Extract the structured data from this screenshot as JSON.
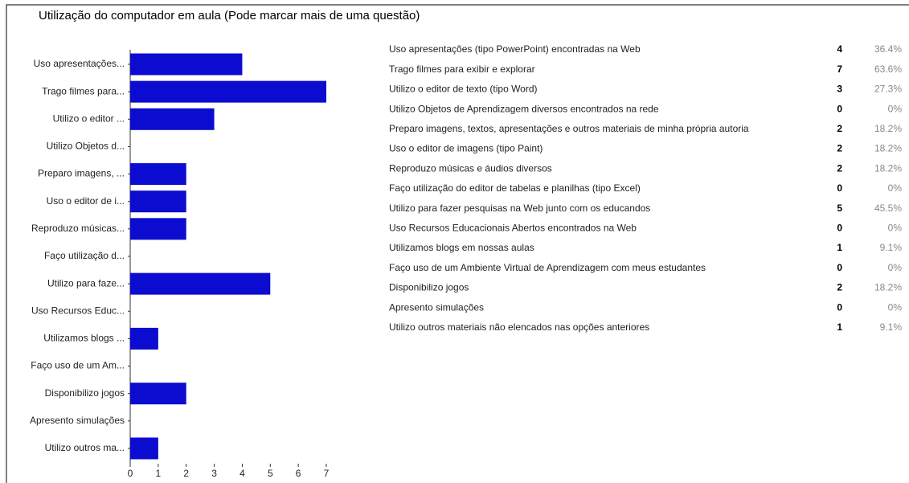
{
  "title": "Utilização do computador em aula (Pode marcar mais de uma questão)",
  "chart_data": {
    "type": "bar",
    "orientation": "horizontal",
    "color": "#0c0cd0",
    "categories": [
      "Uso apresentações...",
      "Trago filmes para...",
      "Utilizo o editor ...",
      "Utilizo Objetos d...",
      "Preparo imagens, ...",
      "Uso o editor de i...",
      "Reproduzo músicas...",
      "Faço utilização d...",
      "Utilizo para faze...",
      "Uso Recursos Educ...",
      "Utilizamos blogs ...",
      "Faço uso de um Am...",
      "Disponibilizo jogos",
      "Apresento simulações",
      "Utilizo outros ma..."
    ],
    "values": [
      4,
      7,
      3,
      0,
      2,
      2,
      2,
      0,
      5,
      0,
      1,
      0,
      2,
      0,
      1
    ],
    "xlim": [
      0,
      7
    ],
    "xticks": [
      0,
      1,
      2,
      3,
      4,
      5,
      6,
      7
    ]
  },
  "table": {
    "rows": [
      [
        "Uso apresentações (tipo PowerPoint) encontradas na Web",
        "4",
        "36.4%"
      ],
      [
        "Trago filmes para exibir e explorar",
        "7",
        "63.6%"
      ],
      [
        "Utilizo o editor de texto (tipo Word)",
        "3",
        "27.3%"
      ],
      [
        "Utilizo Objetos de Aprendizagem diversos encontrados na rede",
        "0",
        "0%"
      ],
      [
        "Preparo imagens, textos, apresentações e outros materiais de minha própria autoria",
        "2",
        "18.2%"
      ],
      [
        "Uso o editor de imagens (tipo Paint)",
        "2",
        "18.2%"
      ],
      [
        "Reproduzo músicas e áudios diversos",
        "2",
        "18.2%"
      ],
      [
        "Faço utilização do editor de tabelas e planilhas (tipo Excel)",
        "0",
        "0%"
      ],
      [
        "Utilizo para fazer pesquisas na Web junto com os educandos",
        "5",
        "45.5%"
      ],
      [
        "Uso Recursos Educacionais Abertos encontrados na Web",
        "0",
        "0%"
      ],
      [
        "Utilizamos blogs em nossas aulas",
        "1",
        "9.1%"
      ],
      [
        "Faço uso de um Ambiente Virtual de Aprendizagem com meus estudantes",
        "0",
        "0%"
      ],
      [
        "Disponibilizo jogos",
        "2",
        "18.2%"
      ],
      [
        "Apresento simulações",
        "0",
        "0%"
      ],
      [
        "Utilizo outros materiais não elencados nas opções anteriores",
        "1",
        "9.1%"
      ]
    ]
  }
}
